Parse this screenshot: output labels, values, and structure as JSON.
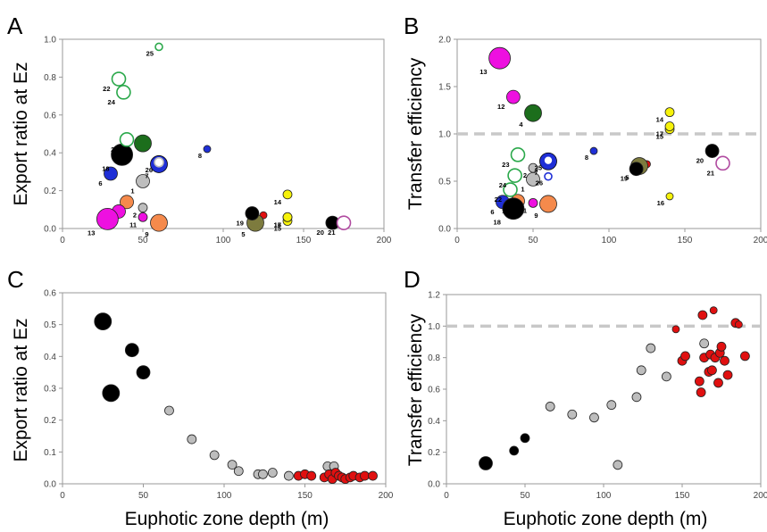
{
  "figure": {
    "panels": [
      "A",
      "B",
      "C",
      "D"
    ],
    "shared_xlabel": "Euphotic zone depth (m)"
  },
  "colors": {
    "black": "#000000",
    "blue": "#1f2fd6",
    "grey": "#bdbdbd",
    "magenta": "#ee10e0",
    "green": "#1c6e1c",
    "olive": "#7d7b3e",
    "orange": "#f58a4c",
    "red": "#e01010",
    "yellow": "#f6f20a",
    "open_green": "#2aa84a",
    "open_purple": "#b04aa0",
    "dashed_line": "#c8c8c8"
  },
  "chart_data": [
    {
      "panel": "A",
      "type": "scatter",
      "title": "",
      "xlabel": "",
      "ylabel": "Export ratio at Ez",
      "xlim": [
        0,
        200
      ],
      "ylim": [
        0,
        1.0
      ],
      "xticks": [
        "0",
        "50",
        "100",
        "150",
        "200"
      ],
      "yticks": [
        "0.0",
        "0.2",
        "0.4",
        "0.6",
        "0.8",
        "1.0"
      ],
      "grid": false,
      "points": [
        {
          "label": "1",
          "x": 50,
          "y": 0.25,
          "color": "grey",
          "size": "m",
          "style": "filled"
        },
        {
          "label": "2",
          "x": 50,
          "y": 0.11,
          "color": "grey",
          "size": "s",
          "style": "filled"
        },
        {
          "label": "3",
          "x": 125,
          "y": 0.07,
          "color": "red",
          "size": "xs",
          "style": "filled"
        },
        {
          "label": "4",
          "x": 50,
          "y": 0.45,
          "color": "green",
          "size": "l",
          "style": "filled"
        },
        {
          "label": "5",
          "x": 120,
          "y": 0.03,
          "color": "olive",
          "size": "l",
          "style": "filled"
        },
        {
          "label": "6",
          "x": 30,
          "y": 0.29,
          "color": "blue",
          "size": "m",
          "style": "filled"
        },
        {
          "label": "7",
          "x": 60,
          "y": 0.34,
          "color": "blue",
          "size": "l",
          "style": "ring"
        },
        {
          "label": "8",
          "x": 90,
          "y": 0.42,
          "color": "blue",
          "size": "xs",
          "style": "filled"
        },
        {
          "label": "9",
          "x": 60,
          "y": 0.03,
          "color": "orange",
          "size": "l",
          "style": "filled"
        },
        {
          "label": "10",
          "x": 40,
          "y": 0.14,
          "color": "orange",
          "size": "m",
          "style": "filled"
        },
        {
          "label": "11",
          "x": 50,
          "y": 0.06,
          "color": "magenta",
          "size": "s",
          "style": "filled"
        },
        {
          "label": "12",
          "x": 35,
          "y": 0.09,
          "color": "magenta",
          "size": "m",
          "style": "filled"
        },
        {
          "label": "13",
          "x": 28,
          "y": 0.05,
          "color": "magenta",
          "size": "xl",
          "style": "filled"
        },
        {
          "label": "14",
          "x": 140,
          "y": 0.18,
          "color": "yellow",
          "size": "s",
          "style": "filled"
        },
        {
          "label": "15",
          "x": 140,
          "y": 0.04,
          "color": "yellow",
          "size": "s",
          "style": "filled"
        },
        {
          "label": "16",
          "x": 140,
          "y": 0.06,
          "color": "yellow",
          "size": "s",
          "style": "filled"
        },
        {
          "label": "17",
          "x": 140,
          "y": 0.06,
          "color": "yellow",
          "size": "s",
          "style": "filled"
        },
        {
          "label": "18",
          "x": 37,
          "y": 0.39,
          "color": "black",
          "size": "xl",
          "style": "filled"
        },
        {
          "label": "19",
          "x": 118,
          "y": 0.08,
          "color": "black",
          "size": "m",
          "style": "filled"
        },
        {
          "label": "20",
          "x": 168,
          "y": 0.03,
          "color": "black",
          "size": "m",
          "style": "filled"
        },
        {
          "label": "21",
          "x": 175,
          "y": 0.03,
          "color": "open_purple",
          "size": "m",
          "style": "open"
        },
        {
          "label": "22",
          "x": 35,
          "y": 0.79,
          "color": "open_green",
          "size": "m",
          "style": "open"
        },
        {
          "label": "23",
          "x": 40,
          "y": 0.47,
          "color": "open_green",
          "size": "m",
          "style": "open"
        },
        {
          "label": "24",
          "x": 38,
          "y": 0.72,
          "color": "open_green",
          "size": "m",
          "style": "open"
        },
        {
          "label": "25",
          "x": 60,
          "y": 0.96,
          "color": "open_green",
          "size": "xs",
          "style": "open"
        },
        {
          "label": "26",
          "x": 60,
          "y": 0.35,
          "color": "grey",
          "size": "s",
          "style": "open"
        }
      ]
    },
    {
      "panel": "B",
      "type": "scatter",
      "title": "",
      "xlabel": "",
      "ylabel": "Transfer efficiency",
      "xlim": [
        0,
        200
      ],
      "ylim": [
        0,
        2.0
      ],
      "xticks": [
        "0",
        "50",
        "100",
        "150",
        "200"
      ],
      "yticks": [
        "0.0",
        "0.5",
        "1.0",
        "1.5",
        "2.0"
      ],
      "reference_line_y": 1.0,
      "grid": false,
      "points": [
        {
          "label": "1",
          "x": 50,
          "y": 0.52,
          "color": "grey",
          "size": "m",
          "style": "filled"
        },
        {
          "label": "2",
          "x": 50,
          "y": 0.64,
          "color": "grey",
          "size": "s",
          "style": "filled"
        },
        {
          "label": "3",
          "x": 125,
          "y": 0.68,
          "color": "red",
          "size": "xs",
          "style": "filled"
        },
        {
          "label": "4",
          "x": 50,
          "y": 1.22,
          "color": "green",
          "size": "l",
          "style": "filled"
        },
        {
          "label": "5",
          "x": 120,
          "y": 0.66,
          "color": "olive",
          "size": "l",
          "style": "filled"
        },
        {
          "label": "6",
          "x": 30,
          "y": 0.28,
          "color": "blue",
          "size": "m",
          "style": "filled"
        },
        {
          "label": "7",
          "x": 60,
          "y": 0.71,
          "color": "blue",
          "size": "l",
          "style": "ring"
        },
        {
          "label": "8",
          "x": 90,
          "y": 0.82,
          "color": "blue",
          "size": "xs",
          "style": "filled"
        },
        {
          "label": "9",
          "x": 60,
          "y": 0.26,
          "color": "orange",
          "size": "l",
          "style": "filled"
        },
        {
          "label": "10",
          "x": 40,
          "y": 0.29,
          "color": "orange",
          "size": "m",
          "style": "filled"
        },
        {
          "label": "11",
          "x": 50,
          "y": 0.27,
          "color": "magenta",
          "size": "s",
          "style": "filled"
        },
        {
          "label": "12",
          "x": 37,
          "y": 1.39,
          "color": "magenta",
          "size": "m",
          "style": "filled"
        },
        {
          "label": "13",
          "x": 28,
          "y": 1.8,
          "color": "magenta",
          "size": "xl",
          "style": "filled"
        },
        {
          "label": "14",
          "x": 140,
          "y": 1.23,
          "color": "yellow",
          "size": "s",
          "style": "filled"
        },
        {
          "label": "15",
          "x": 140,
          "y": 1.05,
          "color": "yellow",
          "size": "s",
          "style": "filled"
        },
        {
          "label": "16",
          "x": 140,
          "y": 0.34,
          "color": "yellow",
          "size": "xs",
          "style": "filled"
        },
        {
          "label": "17",
          "x": 140,
          "y": 1.08,
          "color": "yellow",
          "size": "s",
          "style": "filled"
        },
        {
          "label": "18",
          "x": 37,
          "y": 0.21,
          "color": "black",
          "size": "xl",
          "style": "filled"
        },
        {
          "label": "19",
          "x": 118,
          "y": 0.63,
          "color": "black",
          "size": "m",
          "style": "filled"
        },
        {
          "label": "20",
          "x": 168,
          "y": 0.82,
          "color": "black",
          "size": "m",
          "style": "filled"
        },
        {
          "label": "21",
          "x": 175,
          "y": 0.69,
          "color": "open_purple",
          "size": "m",
          "style": "open"
        },
        {
          "label": "22",
          "x": 35,
          "y": 0.41,
          "color": "open_green",
          "size": "m",
          "style": "open"
        },
        {
          "label": "23",
          "x": 40,
          "y": 0.78,
          "color": "open_green",
          "size": "m",
          "style": "open"
        },
        {
          "label": "24",
          "x": 38,
          "y": 0.56,
          "color": "open_green",
          "size": "m",
          "style": "open"
        },
        {
          "label": "25",
          "x": 60,
          "y": 0.72,
          "color": "blue",
          "size": "s",
          "style": "open"
        },
        {
          "label": "26",
          "x": 60,
          "y": 0.55,
          "color": "blue",
          "size": "xs",
          "style": "open"
        }
      ]
    },
    {
      "panel": "C",
      "type": "scatter",
      "title": "",
      "xlabel": "Euphotic zone depth (m)",
      "ylabel": "Export ratio at Ez",
      "xlim": [
        0,
        200
      ],
      "ylim": [
        0,
        0.6
      ],
      "xticks": [
        "0",
        "50",
        "100",
        "150",
        "200"
      ],
      "yticks": [
        "0.0",
        "0.1",
        "0.2",
        "0.3",
        "0.4",
        "0.5",
        "0.6"
      ],
      "grid": false,
      "points": [
        {
          "x": 25,
          "y": 0.51,
          "color": "black",
          "size": "l"
        },
        {
          "x": 30,
          "y": 0.285,
          "color": "black",
          "size": "l"
        },
        {
          "x": 43,
          "y": 0.42,
          "color": "black",
          "size": "m"
        },
        {
          "x": 50,
          "y": 0.35,
          "color": "black",
          "size": "m"
        },
        {
          "x": 66,
          "y": 0.23,
          "color": "grey",
          "size": "s"
        },
        {
          "x": 80,
          "y": 0.14,
          "color": "grey",
          "size": "s"
        },
        {
          "x": 94,
          "y": 0.09,
          "color": "grey",
          "size": "s"
        },
        {
          "x": 105,
          "y": 0.06,
          "color": "grey",
          "size": "s"
        },
        {
          "x": 109,
          "y": 0.04,
          "color": "grey",
          "size": "s"
        },
        {
          "x": 121,
          "y": 0.03,
          "color": "grey",
          "size": "s"
        },
        {
          "x": 124,
          "y": 0.03,
          "color": "grey",
          "size": "s"
        },
        {
          "x": 130,
          "y": 0.035,
          "color": "grey",
          "size": "s"
        },
        {
          "x": 140,
          "y": 0.025,
          "color": "grey",
          "size": "s"
        },
        {
          "x": 164,
          "y": 0.055,
          "color": "grey",
          "size": "s"
        },
        {
          "x": 168,
          "y": 0.055,
          "color": "grey",
          "size": "s"
        },
        {
          "x": 146,
          "y": 0.025,
          "color": "red",
          "size": "s"
        },
        {
          "x": 150,
          "y": 0.03,
          "color": "red",
          "size": "s"
        },
        {
          "x": 154,
          "y": 0.025,
          "color": "red",
          "size": "s"
        },
        {
          "x": 162,
          "y": 0.02,
          "color": "red",
          "size": "s"
        },
        {
          "x": 165,
          "y": 0.03,
          "color": "red",
          "size": "s"
        },
        {
          "x": 167,
          "y": 0.015,
          "color": "red",
          "size": "s"
        },
        {
          "x": 169,
          "y": 0.035,
          "color": "red",
          "size": "s"
        },
        {
          "x": 171,
          "y": 0.025,
          "color": "red",
          "size": "s"
        },
        {
          "x": 173,
          "y": 0.02,
          "color": "red",
          "size": "s"
        },
        {
          "x": 175,
          "y": 0.015,
          "color": "red",
          "size": "s"
        },
        {
          "x": 178,
          "y": 0.02,
          "color": "red",
          "size": "s"
        },
        {
          "x": 180,
          "y": 0.025,
          "color": "red",
          "size": "s"
        },
        {
          "x": 184,
          "y": 0.02,
          "color": "red",
          "size": "s"
        },
        {
          "x": 187,
          "y": 0.025,
          "color": "red",
          "size": "s"
        },
        {
          "x": 192,
          "y": 0.025,
          "color": "red",
          "size": "s"
        }
      ]
    },
    {
      "panel": "D",
      "type": "scatter",
      "title": "",
      "xlabel": "Euphotic zone depth (m)",
      "ylabel": "Transfer efficiency",
      "xlim": [
        0,
        200
      ],
      "ylim": [
        0,
        1.2
      ],
      "xticks": [
        "0",
        "50",
        "100",
        "150",
        "200"
      ],
      "yticks": [
        "0.0",
        "0.2",
        "0.4",
        "0.6",
        "0.8",
        "1.0",
        "1.2"
      ],
      "reference_line_y": 1.0,
      "grid": false,
      "points": [
        {
          "x": 25,
          "y": 0.13,
          "color": "black",
          "size": "m"
        },
        {
          "x": 43,
          "y": 0.21,
          "color": "black",
          "size": "s"
        },
        {
          "x": 50,
          "y": 0.29,
          "color": "black",
          "size": "s"
        },
        {
          "x": 66,
          "y": 0.49,
          "color": "grey",
          "size": "s"
        },
        {
          "x": 80,
          "y": 0.44,
          "color": "grey",
          "size": "s"
        },
        {
          "x": 94,
          "y": 0.42,
          "color": "grey",
          "size": "s"
        },
        {
          "x": 105,
          "y": 0.5,
          "color": "grey",
          "size": "s"
        },
        {
          "x": 109,
          "y": 0.12,
          "color": "grey",
          "size": "s"
        },
        {
          "x": 121,
          "y": 0.55,
          "color": "grey",
          "size": "s"
        },
        {
          "x": 124,
          "y": 0.72,
          "color": "grey",
          "size": "s"
        },
        {
          "x": 130,
          "y": 0.86,
          "color": "grey",
          "size": "s"
        },
        {
          "x": 140,
          "y": 0.68,
          "color": "grey",
          "size": "s"
        },
        {
          "x": 164,
          "y": 0.89,
          "color": "grey",
          "size": "s"
        },
        {
          "x": 146,
          "y": 0.98,
          "color": "red",
          "size": "xs"
        },
        {
          "x": 150,
          "y": 0.78,
          "color": "red",
          "size": "s"
        },
        {
          "x": 152,
          "y": 0.81,
          "color": "red",
          "size": "s"
        },
        {
          "x": 161,
          "y": 0.65,
          "color": "red",
          "size": "s"
        },
        {
          "x": 162,
          "y": 0.58,
          "color": "red",
          "size": "s"
        },
        {
          "x": 163,
          "y": 1.07,
          "color": "red",
          "size": "s"
        },
        {
          "x": 164,
          "y": 0.8,
          "color": "red",
          "size": "s"
        },
        {
          "x": 167,
          "y": 0.71,
          "color": "red",
          "size": "s"
        },
        {
          "x": 168,
          "y": 0.82,
          "color": "red",
          "size": "s"
        },
        {
          "x": 169,
          "y": 0.72,
          "color": "red",
          "size": "s"
        },
        {
          "x": 170,
          "y": 1.1,
          "color": "red",
          "size": "xs"
        },
        {
          "x": 171,
          "y": 0.8,
          "color": "red",
          "size": "s"
        },
        {
          "x": 173,
          "y": 0.64,
          "color": "red",
          "size": "s"
        },
        {
          "x": 174,
          "y": 0.83,
          "color": "red",
          "size": "s"
        },
        {
          "x": 175,
          "y": 0.87,
          "color": "red",
          "size": "s"
        },
        {
          "x": 177,
          "y": 0.78,
          "color": "red",
          "size": "s"
        },
        {
          "x": 179,
          "y": 0.69,
          "color": "red",
          "size": "s"
        },
        {
          "x": 184,
          "y": 1.02,
          "color": "red",
          "size": "s"
        },
        {
          "x": 186,
          "y": 1.01,
          "color": "red",
          "size": "xs"
        },
        {
          "x": 190,
          "y": 0.81,
          "color": "red",
          "size": "s"
        }
      ]
    }
  ]
}
